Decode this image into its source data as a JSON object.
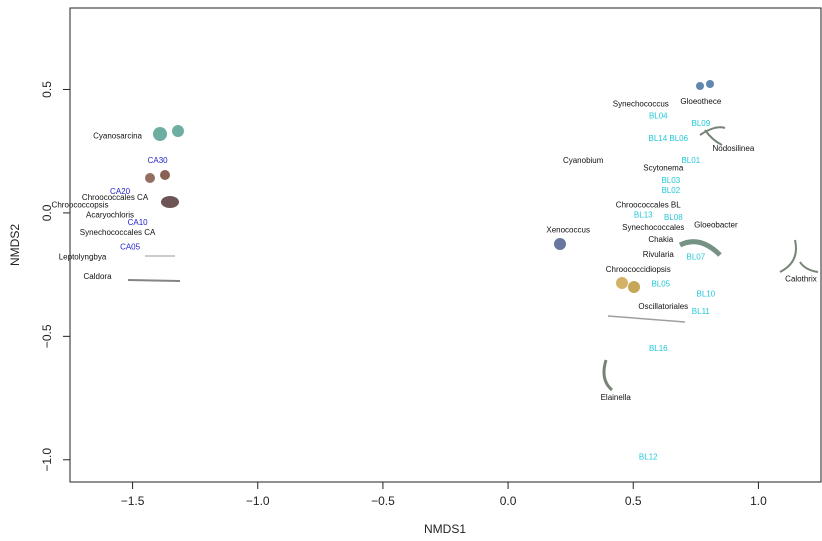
{
  "chart_data": {
    "type": "scatter",
    "x_label": "NMDS1",
    "y_label": "NMDS2",
    "xlim": [
      -1.75,
      1.25
    ],
    "ylim": [
      -1.09,
      0.83
    ],
    "xticks": [
      {
        "value": -1.5,
        "label": "−1.5"
      },
      {
        "value": -1.0,
        "label": "−1.0"
      },
      {
        "value": -0.5,
        "label": "−0.5"
      },
      {
        "value": 0,
        "label": "0.0"
      },
      {
        "value": 0.5,
        "label": "0.5"
      },
      {
        "value": 1.0,
        "label": "1.0"
      }
    ],
    "yticks": [
      {
        "value": -1.0,
        "label": "−1.0"
      },
      {
        "value": -0.5,
        "label": "−0.5"
      },
      {
        "value": 0,
        "label": "0.0"
      },
      {
        "value": 0.5,
        "label": "0.5"
      }
    ],
    "groups": [
      {
        "color": "#111111",
        "labels": [
          "Cyanosarcina",
          "Chroococcales CA",
          "Chroococcopsis",
          "Acaryochloris",
          "Synechococcales CA",
          "Leptolyngbya",
          "Caldora",
          "Synechococcus",
          "Gloeothece",
          "Nodosilinea",
          "Cyanobium",
          "Scytonema",
          "Chroococcales BL",
          "Xenococcus",
          "Synechococcales",
          "Gloeobacter",
          "Chakia",
          "Rivularia",
          "Chroococcidiopsis",
          "Oscillatoriales",
          "Calothrix",
          "Elainella"
        ],
        "x": [
          -1.56,
          -1.57,
          -1.71,
          -1.59,
          -1.56,
          -1.7,
          -1.64,
          0.53,
          0.77,
          0.9,
          0.3,
          0.62,
          0.56,
          0.24,
          0.58,
          0.83,
          0.61,
          0.6,
          0.52,
          0.62,
          1.17,
          0.43
        ],
        "y": [
          0.31,
          0.06,
          0.03,
          -0.01,
          -0.08,
          -0.18,
          -0.26,
          0.44,
          0.45,
          0.26,
          0.21,
          0.18,
          0.03,
          -0.07,
          -0.06,
          -0.05,
          -0.11,
          -0.17,
          -0.23,
          -0.38,
          -0.27,
          -0.75
        ]
      },
      {
        "color": "#2222cc",
        "labels": [
          "CA30",
          "CA20",
          "CA10",
          "CA05"
        ],
        "x": [
          -1.4,
          -1.55,
          -1.48,
          -1.51
        ],
        "y": [
          0.21,
          0.085,
          -0.04,
          -0.14
        ]
      },
      {
        "color": "#22c8d8",
        "labels": [
          "BL04",
          "BL09",
          "BL14 BL06",
          "BL01",
          "BL03",
          "BL02",
          "BL13",
          "BL08",
          "BL07",
          "BL05",
          "BL10",
          "BL11",
          "BL16",
          "BL12"
        ],
        "x": [
          0.6,
          0.77,
          0.64,
          0.73,
          0.65,
          0.65,
          0.54,
          0.66,
          0.75,
          0.61,
          0.79,
          0.77,
          0.6,
          0.56
        ],
        "y": [
          0.39,
          0.36,
          0.3,
          0.21,
          0.13,
          0.09,
          -0.01,
          -0.02,
          -0.18,
          -0.29,
          -0.33,
          -0.4,
          -0.55,
          -0.99
        ]
      }
    ]
  }
}
